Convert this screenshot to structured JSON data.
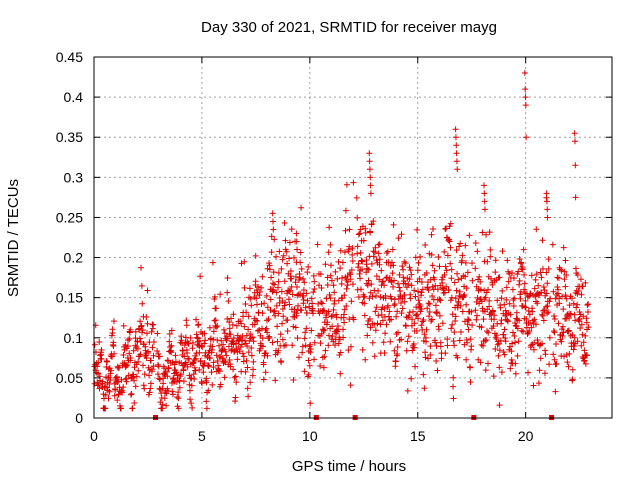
{
  "chart_data": {
    "type": "scatter",
    "title": "Day 330 of 2021, SRMTID for receiver mayg",
    "xlabel": "GPS time / hours",
    "ylabel": "SRMTID / TECUs",
    "xlim": [
      0,
      24
    ],
    "ylim": [
      0,
      0.45
    ],
    "xticks": [
      0,
      5,
      10,
      15,
      20
    ],
    "yticks": [
      0,
      0.05,
      0.1,
      0.15,
      0.2,
      0.25,
      0.3,
      0.35,
      0.4,
      0.45
    ],
    "xtick_labels": [
      "0",
      "5",
      "10",
      "15",
      "20"
    ],
    "ytick_labels": [
      "0",
      "0.05",
      "0.1",
      "0.15",
      "0.2",
      "0.25",
      "0.3",
      "0.35",
      "0.4",
      "0.45"
    ],
    "grid": true,
    "marker": "+",
    "color": "#e00000",
    "gap_markers_x": [
      2.85,
      10.3,
      12.1,
      17.6,
      21.2
    ],
    "trend": [
      [
        0.0,
        0.055
      ],
      [
        0.5,
        0.05
      ],
      [
        1.0,
        0.055
      ],
      [
        1.5,
        0.06
      ],
      [
        2.0,
        0.08
      ],
      [
        2.5,
        0.085
      ],
      [
        3.0,
        0.05
      ],
      [
        3.5,
        0.055
      ],
      [
        4.0,
        0.065
      ],
      [
        4.5,
        0.07
      ],
      [
        5.0,
        0.075
      ],
      [
        5.5,
        0.085
      ],
      [
        6.0,
        0.09
      ],
      [
        6.5,
        0.095
      ],
      [
        7.0,
        0.1
      ],
      [
        7.5,
        0.11
      ],
      [
        8.0,
        0.13
      ],
      [
        8.5,
        0.14
      ],
      [
        9.0,
        0.15
      ],
      [
        9.5,
        0.14
      ],
      [
        10.0,
        0.12
      ],
      [
        10.5,
        0.13
      ],
      [
        11.0,
        0.14
      ],
      [
        11.5,
        0.15
      ],
      [
        12.0,
        0.16
      ],
      [
        12.5,
        0.18
      ],
      [
        13.0,
        0.17
      ],
      [
        13.5,
        0.15
      ],
      [
        14.0,
        0.14
      ],
      [
        14.5,
        0.14
      ],
      [
        15.0,
        0.13
      ],
      [
        15.5,
        0.14
      ],
      [
        16.0,
        0.15
      ],
      [
        16.5,
        0.15
      ],
      [
        17.0,
        0.16
      ],
      [
        17.5,
        0.14
      ],
      [
        18.0,
        0.15
      ],
      [
        18.5,
        0.13
      ],
      [
        19.0,
        0.12
      ],
      [
        19.5,
        0.13
      ],
      [
        20.0,
        0.14
      ],
      [
        20.5,
        0.14
      ],
      [
        21.0,
        0.15
      ],
      [
        21.5,
        0.14
      ],
      [
        22.0,
        0.12
      ],
      [
        22.5,
        0.12
      ],
      [
        23.0,
        0.1
      ]
    ],
    "spikes": [
      {
        "x": 12.8,
        "values": [
          0.33,
          0.32,
          0.31,
          0.3,
          0.29,
          0.28
        ]
      },
      {
        "x": 16.8,
        "values": [
          0.36,
          0.35,
          0.34,
          0.33,
          0.32,
          0.31
        ]
      },
      {
        "x": 18.1,
        "values": [
          0.29,
          0.28,
          0.27,
          0.26
        ]
      },
      {
        "x": 20.0,
        "values": [
          0.43,
          0.41,
          0.4,
          0.39,
          0.35
        ]
      },
      {
        "x": 21.0,
        "values": [
          0.28,
          0.27,
          0.26,
          0.25
        ]
      },
      {
        "x": 22.3,
        "values": [
          0.355,
          0.345,
          0.315,
          0.275
        ]
      },
      {
        "x": 9.4,
        "values": [
          0.23,
          0.22,
          0.21
        ]
      },
      {
        "x": 8.3,
        "values": [
          0.255,
          0.245,
          0.235
        ]
      }
    ],
    "sample_count": 1700
  }
}
